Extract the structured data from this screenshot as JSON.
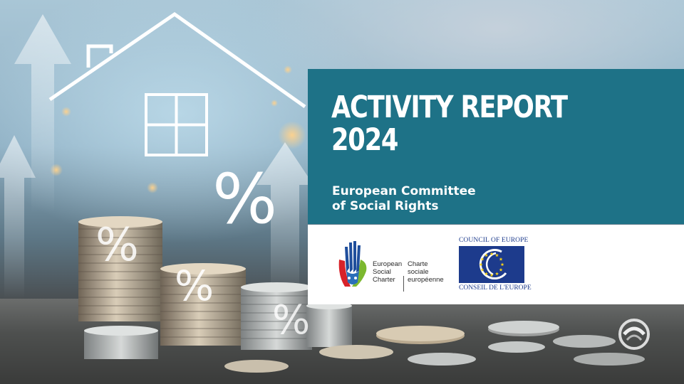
{
  "cover": {
    "title_line1": "ACTIVITY REPORT",
    "title_line2": "2024",
    "subtitle_line1": "European Committee",
    "subtitle_line2": "of Social Rights"
  },
  "esc_logo": {
    "en_line1": "European",
    "en_line2": "Social",
    "en_line3": "Charter",
    "fr_line1": "Charte",
    "fr_line2": "sociale",
    "fr_line3": "européenne"
  },
  "coe_logo": {
    "top_text": "COUNCIL OF EUROPE",
    "bottom_text": "CONSEIL DE L'EUROPE"
  },
  "decor": {
    "percent_symbol": "%",
    "icons": [
      "house-outline-icon",
      "up-arrow-icon",
      "coin-stack",
      "percent-sign",
      "corner-logo-icon"
    ]
  },
  "colors": {
    "panel_teal": "#1e7287",
    "coe_blue": "#1d3b8c",
    "star_yellow": "#f7d117"
  }
}
